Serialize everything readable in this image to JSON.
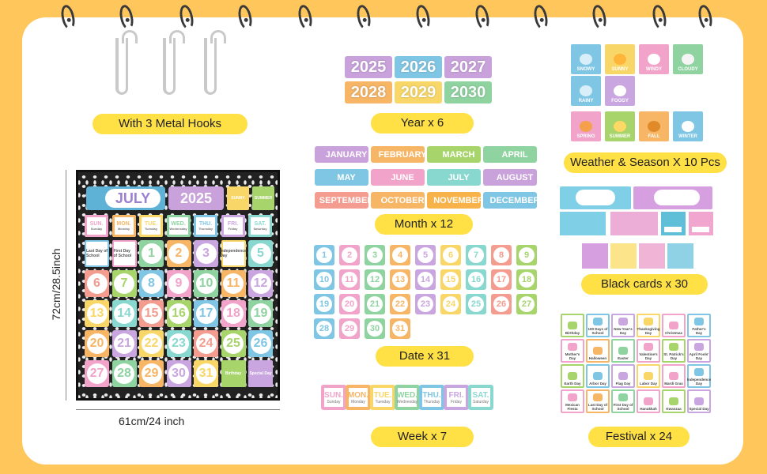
{
  "labels": {
    "hooks": "With 3 Metal Hooks",
    "year": "Year x 6",
    "weather": "Weather & Season X 10 Pcs",
    "month": "Month x 12",
    "black_cards": "Black cards x 30",
    "date": "Date x 31",
    "week": "Week x 7",
    "festival": "Festival  x 24"
  },
  "dimensions": {
    "height": "72cm/28.5inch",
    "width": "61cm/24 inch"
  },
  "years": [
    "2025",
    "2026",
    "2027",
    "2028",
    "2029",
    "2030"
  ],
  "months": [
    "JANUARY",
    "FEBRUARY",
    "MARCH",
    "APRIL",
    "MAY",
    "JUNE",
    "JULY",
    "AUGUST",
    "SEPTEMBER",
    "OCTOBER",
    "NOVEMBER",
    "DECEMBER"
  ],
  "dates": [
    "1",
    "2",
    "3",
    "4",
    "5",
    "6",
    "7",
    "8",
    "9",
    "10",
    "11",
    "12",
    "13",
    "14",
    "15",
    "16",
    "17",
    "18",
    "19",
    "20",
    "21",
    "22",
    "23",
    "24",
    "25",
    "26",
    "27",
    "28",
    "29",
    "30",
    "31"
  ],
  "weekdays": [
    {
      "abbr": "SUN.",
      "full": "Sunday"
    },
    {
      "abbr": "MON.",
      "full": "Monday"
    },
    {
      "abbr": "TUE.",
      "full": "Tuesday"
    },
    {
      "abbr": "WED.",
      "full": "Wednesday"
    },
    {
      "abbr": "THU.",
      "full": "Thursday"
    },
    {
      "abbr": "FRI.",
      "full": "Friday"
    },
    {
      "abbr": "SAT.",
      "full": "Saturday"
    }
  ],
  "weather": [
    "SNOWY",
    "SUNNY",
    "WINDY",
    "CLOUDY",
    "RAINY",
    "FOGGY"
  ],
  "seasons": [
    "SPRING",
    "SUMMER",
    "FALL",
    "WINTER"
  ],
  "festivals": [
    "Birthday",
    "100 Days of School",
    "New Year's Day",
    "Thanksgiving Day",
    "Christmas",
    "Father's Day",
    "Mother's Day",
    "Halloween",
    "Easter",
    "Valentine's Day",
    "St. Patrick's Day",
    "April Fools' Day",
    "Earth Day",
    "Arbor Day",
    "Flag Day",
    "Labor Day",
    "Mardi Gras",
    "Independence Day",
    "Mexican Fiesta",
    "Last Day of School",
    "First Day of School",
    "Hanukkah",
    "Kwanzaa",
    "Special Day"
  ],
  "chart": {
    "month": "JULY",
    "year": "2025",
    "weather": "SUNNY",
    "season": "SUMMER",
    "special": [
      "Last Day of School",
      "First Day of School",
      "Independence Day",
      "Birthday",
      "Special Day"
    ]
  }
}
